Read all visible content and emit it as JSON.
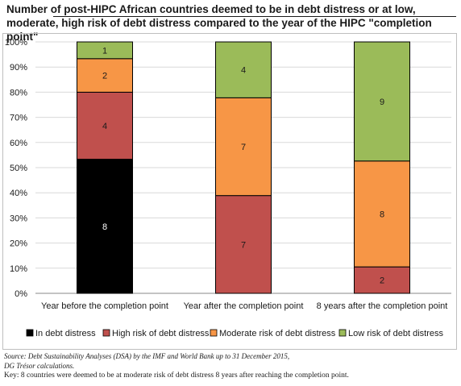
{
  "title": "Number of post-HIPC African countries deemed to be in debt distress or at low, moderate, high risk of debt distress compared to the year of the HIPC \"completion point\"",
  "notes": {
    "source": "Source: Debt Sustainability Analyses (DSA) by the IMF and World Bank up to 31 December 2015,",
    "calc": "DG Trésor calculations.",
    "key": "Key: 8 countries were deemed to be at moderate risk of debt distress 8 years after reaching the completion point."
  },
  "colors": {
    "in_debt_distress": "#000000",
    "high": "#c0504d",
    "moderate": "#f79646",
    "low": "#9bbb59",
    "grid": "#d9d9d9",
    "axis": "#888888",
    "frame": "#bfbfbf"
  },
  "chart_data": {
    "type": "bar",
    "stacked": true,
    "percent": true,
    "categories": [
      "Year before the completion point",
      "Year after the completion point",
      "8 years after the completion point"
    ],
    "series": [
      {
        "name": "In debt distress",
        "values": [
          8,
          0,
          0
        ]
      },
      {
        "name": "High risk of debt distress",
        "values": [
          4,
          7,
          2
        ]
      },
      {
        "name": "Moderate risk of debt distress",
        "values": [
          2,
          7,
          8
        ]
      },
      {
        "name": "Low risk of debt distress",
        "values": [
          1,
          4,
          9
        ]
      }
    ],
    "yticks": [
      "0%",
      "10%",
      "20%",
      "30%",
      "40%",
      "50%",
      "60%",
      "70%",
      "80%",
      "90%",
      "100%"
    ],
    "ylim": [
      0,
      100
    ],
    "grid": true,
    "legend": "bottom"
  }
}
